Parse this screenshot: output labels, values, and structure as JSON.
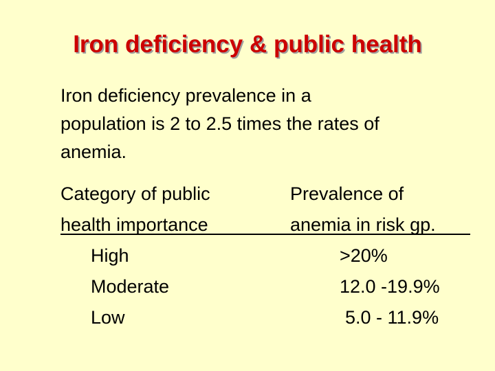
{
  "slide": {
    "title": "Iron deficiency & public health",
    "body_lines": [
      "Iron deficiency prevalence in a",
      "population is 2 to 2.5 times the rates of",
      "anemia."
    ],
    "table": {
      "header_left": [
        "Category of public",
        "health importance"
      ],
      "header_right": [
        "Prevalence of",
        "anemia in risk gp."
      ],
      "rows": [
        {
          "category": "High",
          "prevalence": ">20%"
        },
        {
          "category": "Moderate",
          "prevalence": "12.0 -19.9%"
        },
        {
          "category": "Low",
          "prevalence": "5.0 - 11.9%"
        }
      ]
    },
    "colors": {
      "background": "#FFFFCC",
      "title": "#CC0000",
      "text": "#000000"
    }
  }
}
